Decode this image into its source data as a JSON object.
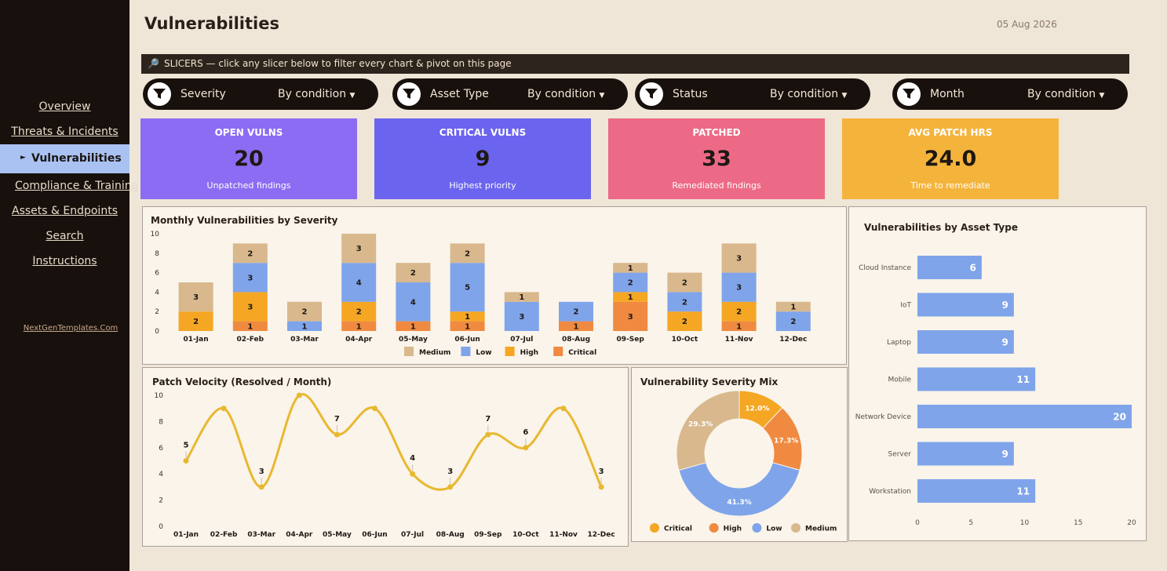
{
  "sidebar": {
    "nav": [
      "Overview",
      "Threats & Incidents",
      "Vulnerabilities",
      "Compliance & Training",
      "Assets & Endpoints",
      "Search",
      "Instructions"
    ],
    "active": "Vulnerabilities",
    "brand": "NextGenTemplates.Com"
  },
  "header": {
    "title": "Vulnerabilities",
    "date": "05 Aug 2026"
  },
  "slicer_bar": {
    "text": "SLICERS — click any slicer below to filter every chart & pivot on this page"
  },
  "slicers": [
    {
      "name": "Severity",
      "condition": "By condition"
    },
    {
      "name": "Asset Type",
      "condition": "By condition"
    },
    {
      "name": "Status",
      "condition": "By condition"
    },
    {
      "name": "Month",
      "condition": "By condition"
    }
  ],
  "kpis": [
    {
      "title": "OPEN VULNS",
      "value": "20",
      "sub": "Unpatched findings",
      "color": "#8c6cf2"
    },
    {
      "title": "CRITICAL VULNS",
      "value": "9",
      "sub": "Highest priority",
      "color": "#6b64ee"
    },
    {
      "title": "PATCHED",
      "value": "33",
      "sub": "Remediated findings",
      "color": "#ec6a85"
    },
    {
      "title": "AVG PATCH HRS",
      "value": "24.0",
      "sub": "Time to remediate",
      "color": "#f4b43c"
    }
  ],
  "chart_data": [
    {
      "type": "bar",
      "title": "Monthly Vulnerabilities by Severity",
      "categories": [
        "01-Jan",
        "02-Feb",
        "03-Mar",
        "04-Apr",
        "05-May",
        "06-Jun",
        "07-Jul",
        "08-Aug",
        "09-Sep",
        "10-Oct",
        "11-Nov",
        "12-Dec"
      ],
      "ylim": [
        0,
        10
      ],
      "yticks": [
        0,
        2,
        4,
        6,
        8,
        10
      ],
      "legend_position": "bottom",
      "series": [
        {
          "name": "Critical",
          "color": "#ef8a40",
          "values": [
            0,
            1,
            0,
            1,
            1,
            1,
            0,
            1,
            3,
            0,
            1,
            0
          ]
        },
        {
          "name": "High",
          "color": "#f5a623",
          "values": [
            2,
            3,
            0,
            2,
            0,
            1,
            0,
            0,
            1,
            2,
            2,
            0
          ]
        },
        {
          "name": "Low",
          "color": "#7fa4ea",
          "values": [
            0,
            3,
            1,
            4,
            4,
            5,
            3,
            2,
            2,
            2,
            3,
            2
          ]
        },
        {
          "name": "Medium",
          "color": "#d8b88c",
          "values": [
            3,
            2,
            2,
            3,
            2,
            2,
            1,
            0,
            1,
            2,
            3,
            1
          ]
        }
      ],
      "legend_order": [
        "Medium",
        "Low",
        "High",
        "Critical"
      ]
    },
    {
      "type": "line",
      "title": "Patch Velocity (Resolved / Month)",
      "categories": [
        "01-Jan",
        "02-Feb",
        "03-Mar",
        "04-Apr",
        "05-May",
        "06-Jun",
        "07-Jul",
        "08-Aug",
        "09-Sep",
        "10-Oct",
        "11-Nov",
        "12-Dec"
      ],
      "values": [
        5,
        9,
        3,
        10,
        7,
        9,
        4,
        3,
        7,
        6,
        9,
        3
      ],
      "labels": [
        "5",
        "",
        "3",
        "",
        "7",
        "",
        "4",
        "3",
        "7",
        "6",
        "",
        "3"
      ],
      "ylim": [
        0,
        10
      ],
      "yticks": [
        0,
        2,
        4,
        6,
        8,
        10
      ],
      "color": "#e8b830"
    },
    {
      "type": "pie",
      "title": "Vulnerability Severity Mix",
      "slices": [
        {
          "name": "Critical",
          "value": 12.0,
          "label": "12.0%",
          "color": "#f5a623"
        },
        {
          "name": "High",
          "value": 17.3,
          "label": "17.3%",
          "color": "#ef8a40"
        },
        {
          "name": "Low",
          "value": 41.3,
          "label": "41.3%",
          "color": "#7fa4ea"
        },
        {
          "name": "Medium",
          "value": 29.3,
          "label": "29.3%",
          "color": "#d8b88c"
        }
      ],
      "legend_position": "bottom"
    },
    {
      "type": "bar",
      "orientation": "horizontal",
      "title": "Vulnerabilities by Asset Type",
      "categories": [
        "Cloud Instance",
        "IoT",
        "Laptop",
        "Mobile",
        "Network Device",
        "Server",
        "Workstation"
      ],
      "values": [
        6,
        9,
        9,
        11,
        20,
        9,
        11
      ],
      "xlim": [
        0,
        20
      ],
      "xticks": [
        0,
        5,
        10,
        15,
        20
      ],
      "color": "#7fa4ea"
    }
  ]
}
